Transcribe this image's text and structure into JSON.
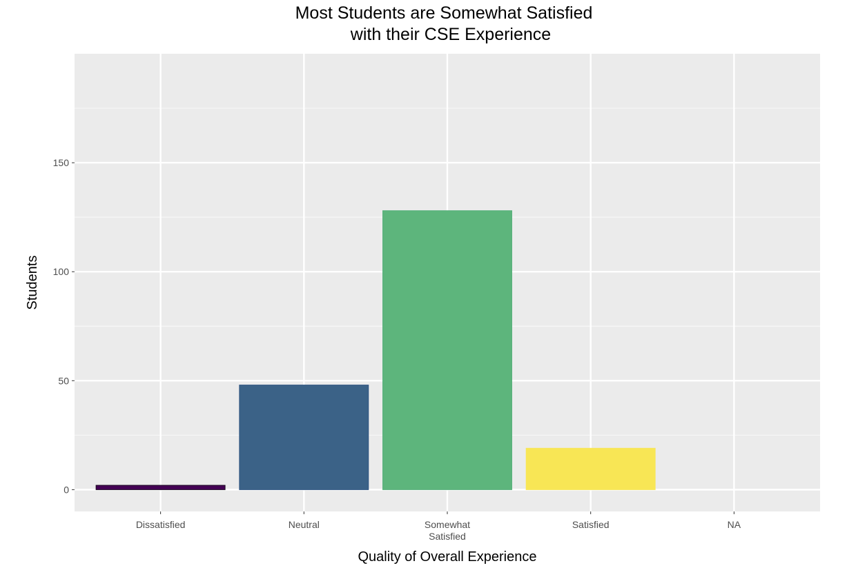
{
  "chart_data": {
    "type": "bar",
    "title": [
      "Most Students are Somewhat Satisfied",
      "with their CSE Experience"
    ],
    "xlabel": "Quality of Overall Experience",
    "ylabel": "Students",
    "categories": [
      "Dissatisfied",
      "Neutral",
      "Somewhat Satisfied",
      "Satisfied",
      "NA"
    ],
    "category_label_lines": [
      [
        "Dissatisfied"
      ],
      [
        "Neutral"
      ],
      [
        "Somewhat",
        "Satisfied"
      ],
      [
        "Satisfied"
      ],
      [
        "NA"
      ]
    ],
    "values": [
      2,
      48,
      128,
      19,
      0
    ],
    "colors": [
      "#440154",
      "#3b6287",
      "#5db57c",
      "#f8e655",
      "#ffffff"
    ],
    "outline_colors": [
      "#1a0a1f",
      "#2f5582",
      "#56b07a",
      "#f8e655",
      "#ffffff"
    ],
    "yticks": [
      0,
      50,
      100,
      150
    ],
    "ylim": [
      -10,
      200
    ],
    "grid": true,
    "panel_background": "#ebebeb",
    "legend": "none"
  }
}
